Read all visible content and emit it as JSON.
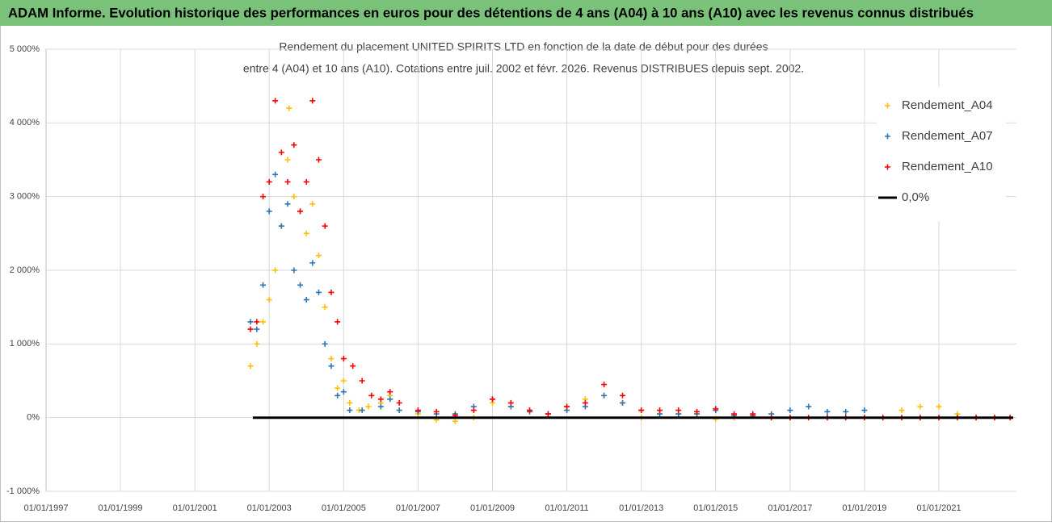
{
  "chart_data": {
    "type": "scatter",
    "title": "ADAM Informe. Evolution historique des performances en euros pour des détentions de 4 ans (A04) à 10 ans (A10) avec les revenus connus distribués",
    "subtitle": [
      "Rendement du placement UNITED SPIRITS LTD en fonction de la date de début pour des durées",
      "entre 4 (A04) et 10 ans (A10). Cotations entre juil. 2002 et févr. 2026.  Revenus DISTRIBUES depuis sept. 2002."
    ],
    "xlim": [
      "01/01/1997",
      "01/02/2023"
    ],
    "xticks": [
      "01/01/1997",
      "01/01/1999",
      "01/01/2001",
      "01/01/2003",
      "01/01/2005",
      "01/01/2007",
      "01/01/2009",
      "01/01/2011",
      "01/01/2013",
      "01/01/2015",
      "01/01/2017",
      "01/01/2019",
      "01/01/2021"
    ],
    "ylim": [
      -1000,
      5000
    ],
    "yticks": [
      {
        "value": -1000,
        "label": "-1 000%"
      },
      {
        "value": 0,
        "label": "0%"
      },
      {
        "value": 1000,
        "label": "1 000%"
      },
      {
        "value": 2000,
        "label": "2 000%"
      },
      {
        "value": 3000,
        "label": "3 000%"
      },
      {
        "value": 4000,
        "label": "4 000%"
      },
      {
        "value": 5000,
        "label": "5 000%"
      }
    ],
    "grid": true,
    "legend": "upper right",
    "series": [
      {
        "name": "Rendement_A04",
        "color": "#ffc000",
        "style": "marker",
        "x": [
          "01/07/2002",
          "01/09/2002",
          "01/11/2002",
          "01/01/2003",
          "01/03/2003",
          "01/05/2003",
          "01/07/2003",
          "15/07/2003",
          "01/09/2003",
          "01/11/2003",
          "01/01/2004",
          "01/03/2004",
          "01/05/2004",
          "01/07/2004",
          "01/09/2004",
          "01/11/2004",
          "01/01/2005",
          "01/03/2005",
          "01/06/2005",
          "01/09/2005",
          "01/01/2006",
          "01/04/2006",
          "01/07/2006",
          "01/01/2007",
          "01/07/2007",
          "01/01/2008",
          "01/07/2008",
          "01/01/2009",
          "01/07/2009",
          "01/01/2010",
          "01/07/2010",
          "01/01/2011",
          "01/07/2011",
          "01/01/2012",
          "01/07/2012",
          "01/01/2013",
          "01/07/2013",
          "01/01/2014",
          "01/07/2014",
          "01/01/2015",
          "01/07/2015",
          "01/01/2016",
          "01/07/2016",
          "01/01/2017",
          "01/01/2018",
          "01/01/2019",
          "01/01/2020",
          "01/07/2020",
          "01/01/2021",
          "01/07/2021",
          "01/01/2022",
          "01/07/2022",
          "01/12/2022"
        ],
        "values": [
          700,
          1000,
          1300,
          1600,
          2000,
          2600,
          3500,
          4200,
          3000,
          2800,
          2500,
          2900,
          2200,
          1500,
          800,
          400,
          500,
          200,
          100,
          150,
          200,
          300,
          100,
          50,
          -30,
          -50,
          0,
          200,
          150,
          100,
          50,
          150,
          250,
          300,
          200,
          0,
          50,
          50,
          50,
          -20,
          0,
          20,
          0,
          0,
          0,
          0,
          100,
          150,
          150,
          50,
          0,
          0,
          0
        ]
      },
      {
        "name": "Rendement_A07",
        "color": "#2e75b6",
        "style": "marker",
        "x": [
          "01/07/2002",
          "01/09/2002",
          "01/11/2002",
          "01/01/2003",
          "01/03/2003",
          "01/05/2003",
          "01/07/2003",
          "01/09/2003",
          "01/11/2003",
          "01/01/2004",
          "01/03/2004",
          "01/05/2004",
          "01/07/2004",
          "01/09/2004",
          "01/11/2004",
          "01/01/2005",
          "01/03/2005",
          "01/07/2005",
          "01/01/2006",
          "01/04/2006",
          "01/07/2006",
          "01/01/2007",
          "01/07/2007",
          "01/01/2008",
          "01/07/2008",
          "01/01/2009",
          "01/07/2009",
          "01/01/2010",
          "01/07/2010",
          "01/01/2011",
          "01/07/2011",
          "01/01/2012",
          "01/07/2012",
          "01/01/2013",
          "01/07/2013",
          "01/01/2014",
          "01/07/2014",
          "01/01/2015",
          "01/07/2015",
          "01/01/2016",
          "01/07/2016",
          "01/01/2017",
          "01/07/2017",
          "01/01/2018",
          "01/07/2018",
          "01/01/2019"
        ],
        "values": [
          1300,
          1200,
          1800,
          2800,
          3300,
          2600,
          2900,
          2000,
          1800,
          1600,
          2100,
          1700,
          1000,
          700,
          300,
          350,
          100,
          100,
          150,
          250,
          100,
          80,
          50,
          50,
          150,
          250,
          150,
          80,
          50,
          100,
          150,
          300,
          200,
          100,
          50,
          50,
          50,
          100,
          30,
          30,
          50,
          100,
          150,
          80,
          80,
          100
        ]
      },
      {
        "name": "Rendement_A10",
        "color": "#ff0000",
        "style": "marker",
        "x": [
          "01/07/2002",
          "01/09/2002",
          "01/11/2002",
          "01/01/2003",
          "01/03/2003",
          "01/05/2003",
          "01/07/2003",
          "01/09/2003",
          "01/11/2003",
          "01/01/2004",
          "01/03/2004",
          "01/05/2004",
          "01/07/2004",
          "01/09/2004",
          "01/11/2004",
          "01/01/2005",
          "01/04/2005",
          "01/07/2005",
          "01/10/2005",
          "01/01/2006",
          "01/04/2006",
          "01/07/2006",
          "01/01/2007",
          "01/07/2007",
          "01/01/2008",
          "01/07/2008",
          "01/01/2009",
          "01/07/2009",
          "01/01/2010",
          "01/07/2010",
          "01/01/2011",
          "01/07/2011",
          "01/01/2012",
          "01/07/2012",
          "01/01/2013",
          "01/07/2013",
          "01/01/2014",
          "01/07/2014",
          "01/01/2015",
          "01/07/2015",
          "01/01/2016",
          "01/07/2016",
          "01/01/2017",
          "01/07/2017",
          "01/01/2018",
          "01/07/2018",
          "01/01/2019",
          "01/07/2019",
          "01/01/2020",
          "01/07/2020",
          "01/01/2021",
          "01/07/2021",
          "01/01/2022",
          "01/07/2022",
          "01/12/2022"
        ],
        "values": [
          1200,
          1300,
          3000,
          3200,
          4300,
          3600,
          3200,
          3700,
          2800,
          3200,
          4300,
          3500,
          2600,
          1700,
          1300,
          800,
          700,
          500,
          300,
          250,
          350,
          200,
          100,
          80,
          30,
          100,
          250,
          200,
          100,
          50,
          150,
          200,
          450,
          300,
          100,
          100,
          100,
          80,
          120,
          50,
          50,
          0,
          0,
          0,
          0,
          0,
          0,
          0,
          0,
          0,
          0,
          0,
          0,
          0,
          0
        ]
      },
      {
        "name": "0,0%",
        "color": "#000000",
        "style": "line",
        "x": [
          "24/07/2002",
          "31/12/2022"
        ],
        "values": [
          0,
          0
        ]
      }
    ]
  }
}
